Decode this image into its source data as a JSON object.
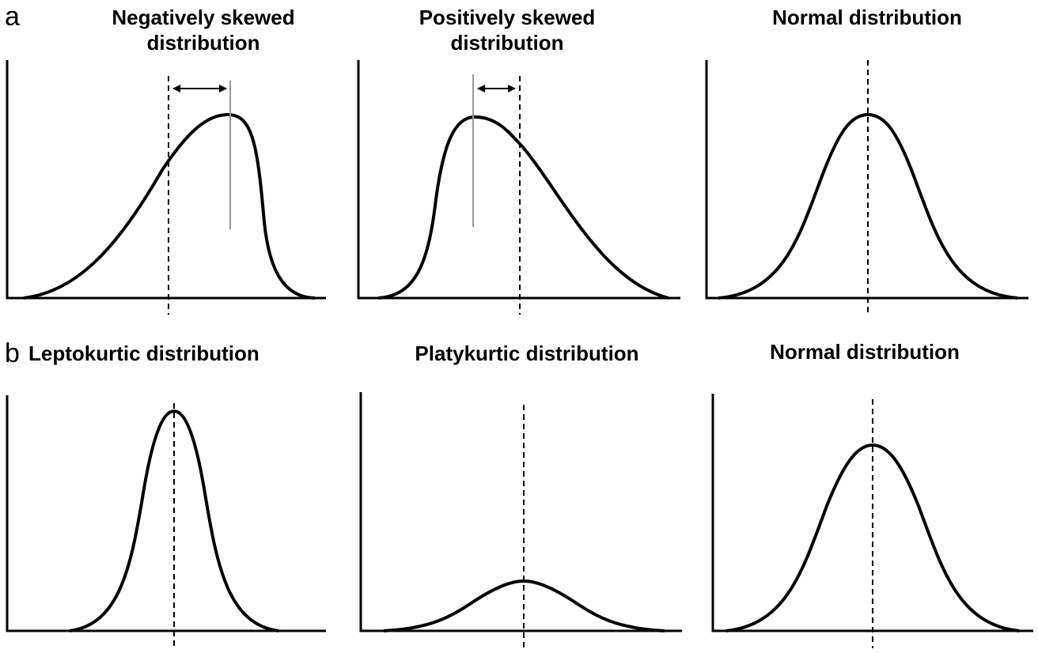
{
  "panels": {
    "a": {
      "letter": "a"
    },
    "b": {
      "letter": "b"
    }
  },
  "titles": {
    "negative_line1": "Negatively skewed",
    "negative_line2": "distribution",
    "positive_line1": "Positively skewed",
    "positive_line2": "distribution",
    "normal_a": "Normal distribution",
    "leptokurtic": "Leptokurtic distribution",
    "platykurtic": "Platykurtic distribution",
    "normal_b": "Normal distribution"
  },
  "style": {
    "curve_color": "#000000",
    "marker_color": "#999999"
  }
}
